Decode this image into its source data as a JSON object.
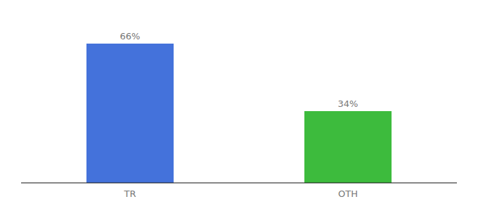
{
  "chart_data": {
    "type": "bar",
    "categories": [
      "TR",
      "OTH"
    ],
    "values": [
      66,
      34
    ],
    "value_labels": [
      "66%",
      "34%"
    ],
    "colors": [
      "#4472db",
      "#3dbb3d"
    ],
    "ylim": [
      0,
      80
    ],
    "data_labels": true,
    "tick_labels": "x"
  }
}
